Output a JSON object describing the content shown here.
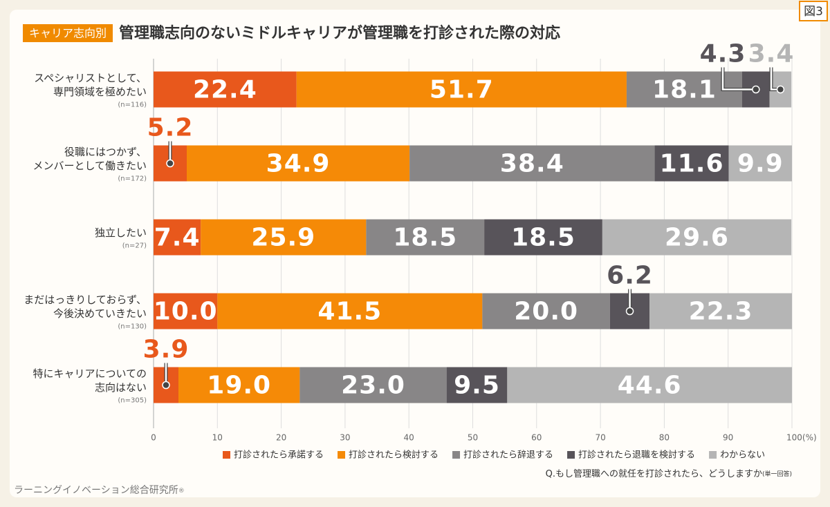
{
  "figure_label": "図3",
  "chart_data": {
    "type": "stacked_bar",
    "orientation": "horizontal",
    "badge": "キャリア志向別",
    "title": "管理職志向のないミドルキャリアが管理職を打診された際の対応",
    "categories": [
      [
        "スペシャリストとして、",
        "専門領域を極めたい"
      ],
      [
        "役職にはつかず、",
        "メンバーとして働きたい"
      ],
      [
        "独立したい"
      ],
      [
        "まだはっきりしておらず、",
        "今後決めていきたい"
      ],
      [
        "特にキャリアについての",
        "志向はない"
      ]
    ],
    "category_notes": [
      "(n=116)",
      "(n=172)",
      "(n=27)",
      "(n=130)",
      "(n=305)"
    ],
    "series": [
      {
        "name": "打診されたら承諾する",
        "color": "#e8581c",
        "values": [
          22.4,
          5.2,
          7.4,
          10.0,
          3.9
        ],
        "value_labels": [
          "22.4",
          "5.2",
          "7.4",
          "10.0",
          "3.9"
        ]
      },
      {
        "name": "打診されたら検討する",
        "color": "#f58a07",
        "values": [
          51.7,
          34.9,
          25.9,
          41.5,
          19.0
        ],
        "value_labels": [
          "51.7",
          "34.9",
          "25.9",
          "41.5",
          "19.0"
        ]
      },
      {
        "name": "打診されたら辞退する",
        "color": "#888687",
        "values": [
          18.1,
          38.4,
          18.5,
          20.0,
          23.0
        ],
        "value_labels": [
          "18.1",
          "38.4",
          "18.5",
          "20.0",
          "23.0"
        ]
      },
      {
        "name": "打診されたら退職を検討する",
        "color": "#58545a",
        "values": [
          4.3,
          11.6,
          18.5,
          6.2,
          9.5
        ],
        "value_labels": [
          "4.3",
          "11.6",
          "18.5",
          "6.2",
          "9.5"
        ]
      },
      {
        "name": "わからない",
        "color": "#b5b5b5",
        "values": [
          3.4,
          9.9,
          29.6,
          22.3,
          44.6
        ],
        "value_labels": [
          "3.4",
          "9.9",
          "29.6",
          "22.3",
          "44.6"
        ]
      }
    ],
    "xlim": [
      0,
      100
    ],
    "xticks": [
      0,
      10,
      20,
      30,
      40,
      50,
      60,
      70,
      80,
      90,
      {
        "value": 100,
        "label": "100(%)"
      }
    ],
    "grid": true,
    "note": "Q.もし管理職への就任を打診されたら、どうしますか",
    "note_small": "(単一回答)"
  },
  "source": "ラーニングイノベーション総合研究所",
  "source_mark": "®"
}
